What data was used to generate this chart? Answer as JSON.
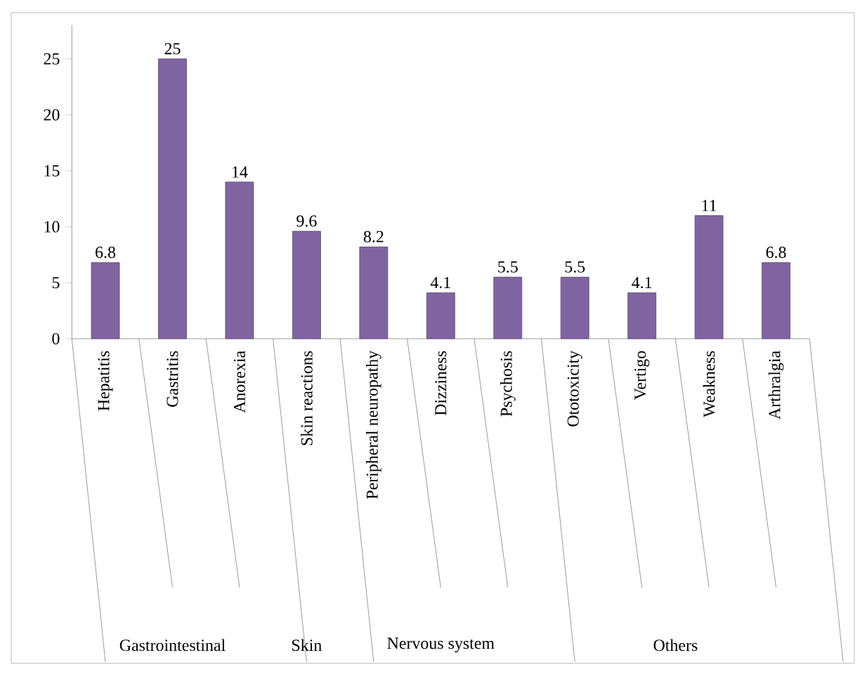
{
  "chart_data": {
    "type": "bar",
    "categories": [
      "Hepatitis",
      "Gastritis",
      "Anorexia",
      "Skin reactions",
      "Peripheral neuropathy",
      "Dizziness",
      "Psychosis",
      "Ototoxicity",
      "Vertigo",
      "Weakness",
      "Arthralgia"
    ],
    "values": [
      6.8,
      25,
      14,
      9.6,
      8.2,
      4.1,
      5.5,
      5.5,
      4.1,
      11,
      6.8
    ],
    "color": "#8064a2",
    "ylim": [
      0,
      28
    ],
    "yticks": [
      0,
      5,
      10,
      15,
      20,
      25
    ],
    "data_labels": true,
    "annotations": [
      "Gastrointestinal",
      "Skin",
      "Nervous system",
      "Others"
    ]
  }
}
